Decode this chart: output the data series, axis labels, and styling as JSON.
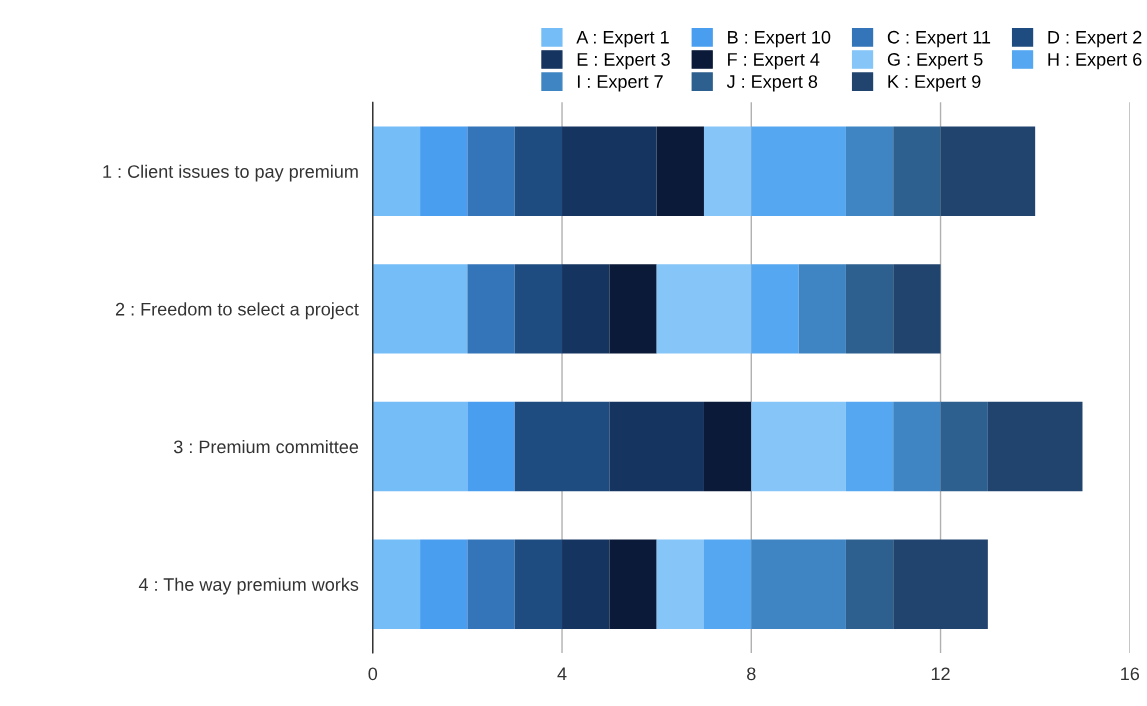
{
  "chart_data": {
    "type": "bar",
    "orientation": "horizontal",
    "stacked": true,
    "categories": [
      "1 : Client issues to pay premium",
      "2 : Freedom to select a project",
      "3 : Premium committee",
      "4 : The way premium works"
    ],
    "series": [
      {
        "name": "A : Expert 1",
        "color": "#74bdf7",
        "values": [
          1,
          2,
          2,
          1
        ]
      },
      {
        "name": "B : Expert 10",
        "color": "#4a9ef0",
        "values": [
          1,
          0,
          1,
          1
        ]
      },
      {
        "name": "C : Expert 11",
        "color": "#3474b8",
        "values": [
          1,
          1,
          0,
          1
        ]
      },
      {
        "name": "D : Expert 2",
        "color": "#1f4c80",
        "values": [
          1,
          1,
          2,
          1
        ]
      },
      {
        "name": "E : Expert 3",
        "color": "#163460",
        "values": [
          2,
          1,
          2,
          1
        ]
      },
      {
        "name": "F : Expert 4",
        "color": "#0b1a38",
        "values": [
          1,
          1,
          1,
          1
        ]
      },
      {
        "name": "G : Expert 5",
        "color": "#86c5f7",
        "values": [
          1,
          2,
          2,
          1
        ]
      },
      {
        "name": "H : Expert 6",
        "color": "#54a7f0",
        "values": [
          2,
          1,
          1,
          1
        ]
      },
      {
        "name": "I : Expert 7",
        "color": "#3f85c3",
        "values": [
          1,
          1,
          1,
          2
        ]
      },
      {
        "name": "J : Expert 8",
        "color": "#2d5f8f",
        "values": [
          1,
          1,
          1,
          1
        ]
      },
      {
        "name": "K : Expert 9",
        "color": "#21446f",
        "values": [
          2,
          1,
          2,
          2
        ]
      }
    ],
    "xlim": [
      0,
      16
    ],
    "xticks": [
      0,
      4,
      8,
      12,
      16
    ],
    "grid": "x",
    "legend": "top"
  }
}
